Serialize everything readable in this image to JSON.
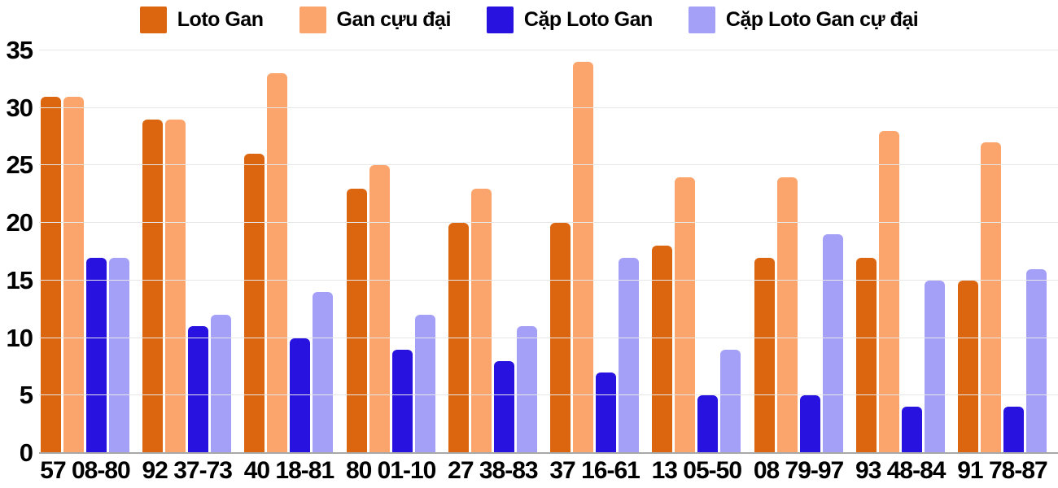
{
  "chart_data": {
    "type": "bar",
    "title": "",
    "xlabel": "",
    "ylabel": "",
    "categories": [
      "57 08-80",
      "92 37-73",
      "40 18-81",
      "80 01-10",
      "27 38-83",
      "37 16-61",
      "13 05-50",
      "08 79-97",
      "93 48-84",
      "91 78-87"
    ],
    "series": [
      {
        "name": "Loto Gan",
        "color": "#dc660f",
        "values": [
          31,
          29,
          26,
          23,
          20,
          20,
          18,
          17,
          17,
          15
        ]
      },
      {
        "name": "Gan cựu đại",
        "color": "#fba46c",
        "values": [
          31,
          29,
          33,
          25,
          23,
          34,
          24,
          24,
          28,
          27
        ]
      },
      {
        "name": "Cặp Loto Gan",
        "color": "#2712df",
        "values": [
          17,
          11,
          10,
          9,
          8,
          7,
          5,
          5,
          4,
          4
        ]
      },
      {
        "name": "Cặp Loto Gan cự đại",
        "color": "#a49ff7",
        "values": [
          17,
          12,
          14,
          12,
          11,
          17,
          9,
          19,
          15,
          16
        ]
      }
    ],
    "ylim": [
      0,
      35
    ],
    "yticks": [
      0,
      5,
      10,
      15,
      20,
      25,
      30,
      35
    ],
    "grid": true,
    "legend_position": "top"
  },
  "colors": {
    "background": "#ffffff",
    "gridline": "#e7e7e7",
    "axis_line": "#a8a8a8",
    "text": "#000000"
  }
}
